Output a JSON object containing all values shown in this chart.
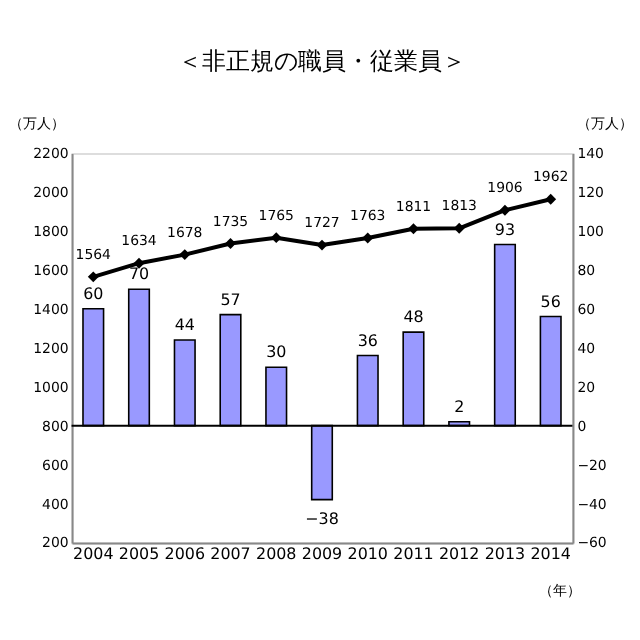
{
  "chart_data": {
    "type": "bar",
    "title": "＜非正規の職員・従業員＞",
    "ylabel": "（万人）",
    "y2label": "（万人）",
    "xlabel": "（年）",
    "categories": [
      "2004",
      "2005",
      "2006",
      "2007",
      "2008",
      "2009",
      "2010",
      "2011",
      "2012",
      "2013",
      "2014"
    ],
    "series": [
      {
        "type": "line",
        "color": "#000000",
        "marker": "diamond",
        "values": [
          1564,
          1634,
          1678,
          1735,
          1765,
          1727,
          1763,
          1811,
          1813,
          1906,
          1962
        ]
      },
      {
        "axis": "y2",
        "color": "#9999ff",
        "values": [
          60,
          70,
          44,
          57,
          30,
          -38,
          36,
          48,
          2,
          93,
          56
        ]
      }
    ],
    "ylim": [
      200,
      2200
    ],
    "yticks": [
      200,
      400,
      600,
      800,
      1000,
      1200,
      1400,
      1600,
      1800,
      2000,
      2200
    ],
    "y2lim": [
      -60,
      140
    ],
    "y2ticks": [
      -60,
      -40,
      -20,
      0,
      20,
      40,
      60,
      80,
      100,
      120,
      140
    ],
    "ref_lines": [
      {
        "axis": "y2",
        "value": 0,
        "color": "#000000"
      }
    ],
    "data_labels": true,
    "grid": false
  }
}
